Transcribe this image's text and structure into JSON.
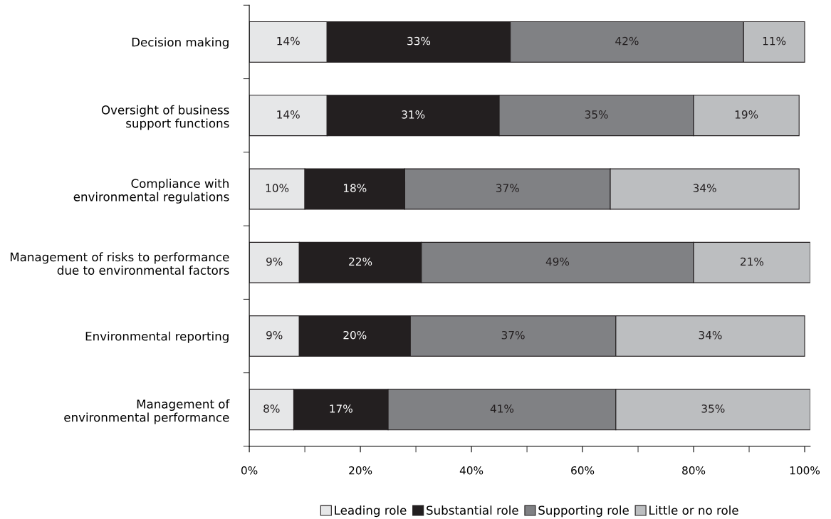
{
  "chart_data": {
    "type": "bar",
    "orientation": "horizontal",
    "stacked": true,
    "categories": [
      "Decision making",
      "Oversight of business\nsupport functions",
      "Compliance with\nenvironmental regulations",
      "Management of risks to performance\ndue to environmental factors",
      "Environmental reporting",
      "Management of\nenvironmental performance"
    ],
    "series": [
      {
        "name": "Leading role",
        "color": "#e6e7e8",
        "values": [
          14,
          14,
          10,
          9,
          9,
          8
        ],
        "value_labels": [
          "14%",
          "14%",
          "10%",
          "9%",
          "9%",
          "8%"
        ]
      },
      {
        "name": "Substantial role",
        "color": "#231f20",
        "values": [
          33,
          31,
          18,
          22,
          20,
          17
        ],
        "value_labels": [
          "33%",
          "31%",
          "18%",
          "22%",
          "20%",
          "17%"
        ]
      },
      {
        "name": "Supporting role",
        "color": "#808184",
        "values": [
          42,
          35,
          37,
          49,
          37,
          41
        ],
        "value_labels": [
          "42%",
          "35%",
          "37%",
          "49%",
          "37%",
          "41%"
        ]
      },
      {
        "name": "Little or no role",
        "color": "#bcbec0",
        "values": [
          11,
          19,
          34,
          21,
          34,
          35
        ],
        "value_labels": [
          "11%",
          "19%",
          "34%",
          "21%",
          "34%",
          "35%"
        ]
      }
    ],
    "xlim": [
      0,
      101
    ],
    "xticks": [
      {
        "value": 0,
        "label": "0%"
      },
      {
        "value": 20,
        "label": "20%"
      },
      {
        "value": 40,
        "label": "40%"
      },
      {
        "value": 60,
        "label": "60%"
      },
      {
        "value": 80,
        "label": "80%"
      },
      {
        "value": 100,
        "label": "100%"
      }
    ],
    "grid": false,
    "legend": "bottom"
  }
}
